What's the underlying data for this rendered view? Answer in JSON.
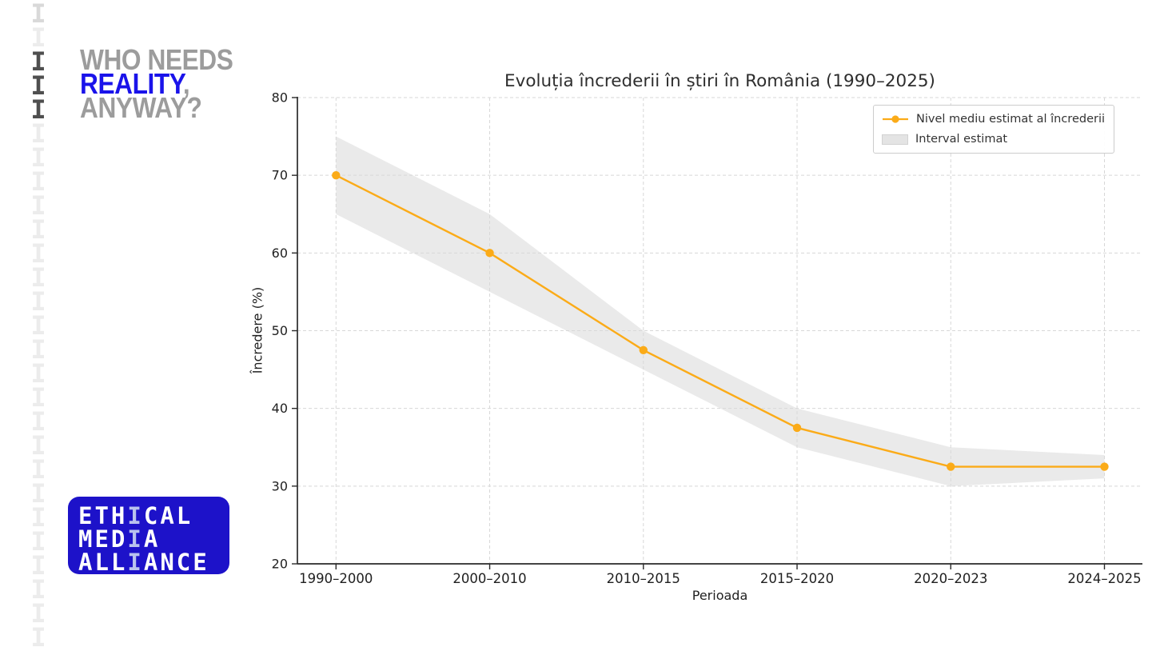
{
  "palette": {
    "headline_gray": "#9c9c9c",
    "headline_blue": "#1a13ea",
    "badge_bg": "#1d12c9",
    "badge_highlight": "#b9c2ee",
    "accent_orange": "#fbab18",
    "band_gray": "#d9d9d9",
    "grid_gray": "#d7d7d7",
    "axis_dark": "#2a2a2a",
    "tick_text": "#1f1f1f"
  },
  "left_strip": {
    "glyph": "I",
    "count": 27,
    "dark_indices": [
      2,
      3,
      4
    ],
    "colors": {
      "dark": "#4f4f4f",
      "first": "#d9d9d9",
      "light": "#ececec"
    }
  },
  "headline": {
    "lines": [
      {
        "text": "WHO NEEDS",
        "color": "headline_gray",
        "suffix": ""
      },
      {
        "text": "REALITY",
        "color": "headline_blue",
        "suffix": ","
      },
      {
        "text": "ANYWAY?",
        "color": "headline_gray",
        "suffix": ""
      }
    ]
  },
  "badge": {
    "lines": [
      {
        "pre": "ETH",
        "hi": "I",
        "post": "CAL"
      },
      {
        "pre": "MED",
        "hi": "I",
        "post": "A"
      },
      {
        "pre": "ALL",
        "hi": "I",
        "post": "ANCE"
      }
    ]
  },
  "chart_data": {
    "type": "line",
    "title": "Evoluția încrederii în știri în România (1990–2025)",
    "xlabel": "Perioada",
    "ylabel": "Încredere (%)",
    "categories": [
      "1990–2000",
      "2000–2010",
      "2010–2015",
      "2015–2020",
      "2020–2023",
      "2024–2025"
    ],
    "series": [
      {
        "name": "Nivel mediu estimat al încrederii",
        "values": [
          70,
          60,
          47.5,
          37.5,
          32.5,
          32.5
        ],
        "color": "#fbab18",
        "marker": "circle"
      }
    ],
    "band": {
      "name": "Interval estimat",
      "upper": [
        75,
        65,
        50,
        40,
        35,
        34
      ],
      "lower": [
        65,
        55,
        45,
        35,
        30,
        31
      ],
      "color": "#e7e7e7"
    },
    "yticks": [
      20,
      30,
      40,
      50,
      60,
      70,
      80
    ],
    "ylim": [
      20,
      80
    ],
    "grid": "dashed",
    "legend_position": "top-right"
  }
}
